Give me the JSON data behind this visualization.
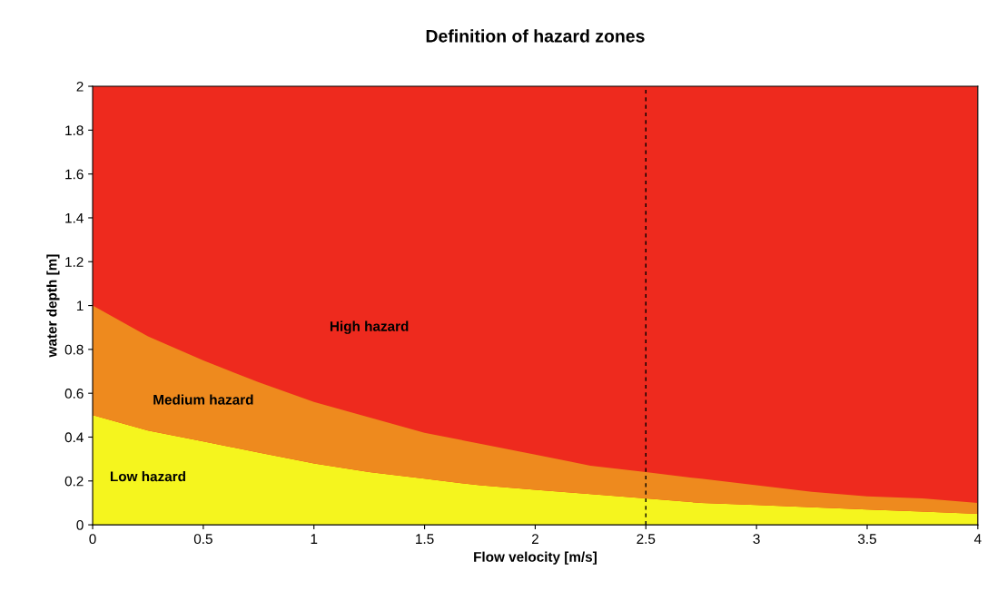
{
  "chart_data": {
    "type": "area",
    "title": "Definition of hazard zones",
    "xlabel": "Flow velocity [m/s]",
    "ylabel": "water depth [m]",
    "x": [
      0,
      0.25,
      0.5,
      0.75,
      1,
      1.25,
      1.5,
      1.75,
      2,
      2.25,
      2.5,
      2.75,
      3,
      3.25,
      3.5,
      3.75,
      4
    ],
    "stacked": true,
    "series": [
      {
        "name": "Low hazard",
        "color": "#f5f51e",
        "values": [
          0.5,
          0.43,
          0.38,
          0.33,
          0.28,
          0.24,
          0.21,
          0.18,
          0.16,
          0.14,
          0.12,
          0.1,
          0.09,
          0.08,
          0.07,
          0.06,
          0.05
        ]
      },
      {
        "name": "Medium hazard",
        "color": "#ee8a1e",
        "values": [
          0.5,
          0.43,
          0.37,
          0.32,
          0.28,
          0.25,
          0.21,
          0.19,
          0.16,
          0.13,
          0.12,
          0.11,
          0.09,
          0.07,
          0.06,
          0.06,
          0.05
        ]
      }
    ],
    "bands": [
      {
        "axis": "y",
        "from": 0,
        "to": 2,
        "label": "High hazard",
        "color": "#ee2a1e"
      }
    ],
    "xlim": [
      0,
      4
    ],
    "xticks": [
      0,
      0.5,
      1,
      1.5,
      2,
      2.5,
      3,
      3.5,
      4
    ],
    "ylim": [
      0,
      2
    ],
    "yticks": [
      0,
      0.2,
      0.4,
      0.6,
      0.8,
      1,
      1.2,
      1.4,
      1.6,
      1.8,
      2
    ],
    "ref_lines": [
      {
        "axis": "x",
        "value": 2.5,
        "color": "#000000",
        "line_style": "dashed"
      }
    ],
    "legend": false
  }
}
